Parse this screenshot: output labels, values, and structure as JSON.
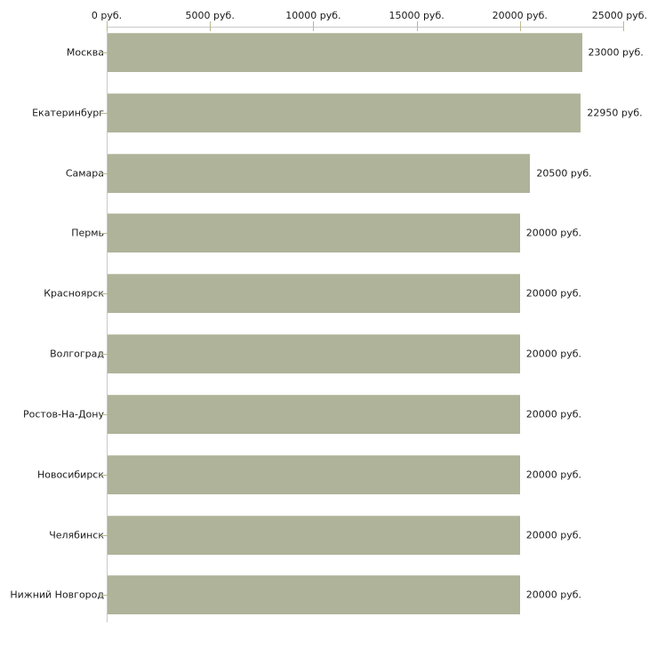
{
  "chart_data": {
    "type": "bar",
    "orientation": "horizontal",
    "title": "",
    "xlabel": "",
    "ylabel": "",
    "unit_suffix": " руб.",
    "categories": [
      "Москва",
      "Екатеринбург",
      "Самара",
      "Пермь",
      "Красноярск",
      "Волгоград",
      "Ростов-На-Дону",
      "Новосибирск",
      "Челябинск",
      "Нижний Новгород"
    ],
    "values": [
      23000,
      22950,
      20500,
      20000,
      20000,
      20000,
      20000,
      20000,
      20000,
      20000
    ],
    "value_labels": [
      "23000 руб.",
      "22950 руб.",
      "20500 руб.",
      "20000 руб.",
      "20000 руб.",
      "20000 руб.",
      "20000 руб.",
      "20000 руб.",
      "20000 руб.",
      "20000 руб."
    ],
    "xlim": [
      0,
      25000
    ],
    "x_ticks": [
      0,
      5000,
      10000,
      15000,
      20000,
      25000
    ],
    "x_tick_labels": [
      "0 руб.",
      "5000 руб.",
      "10000 руб.",
      "15000 руб.",
      "20000 руб.",
      "25000 руб."
    ],
    "axis_position": "top",
    "grid": false,
    "legend": false,
    "colors": {
      "bar_fill": "#aeb399",
      "axis_line": "#c9c9c9",
      "tick_mark": "#b9b98e",
      "text": "#1a1a1a",
      "background": "#ffffff"
    }
  }
}
